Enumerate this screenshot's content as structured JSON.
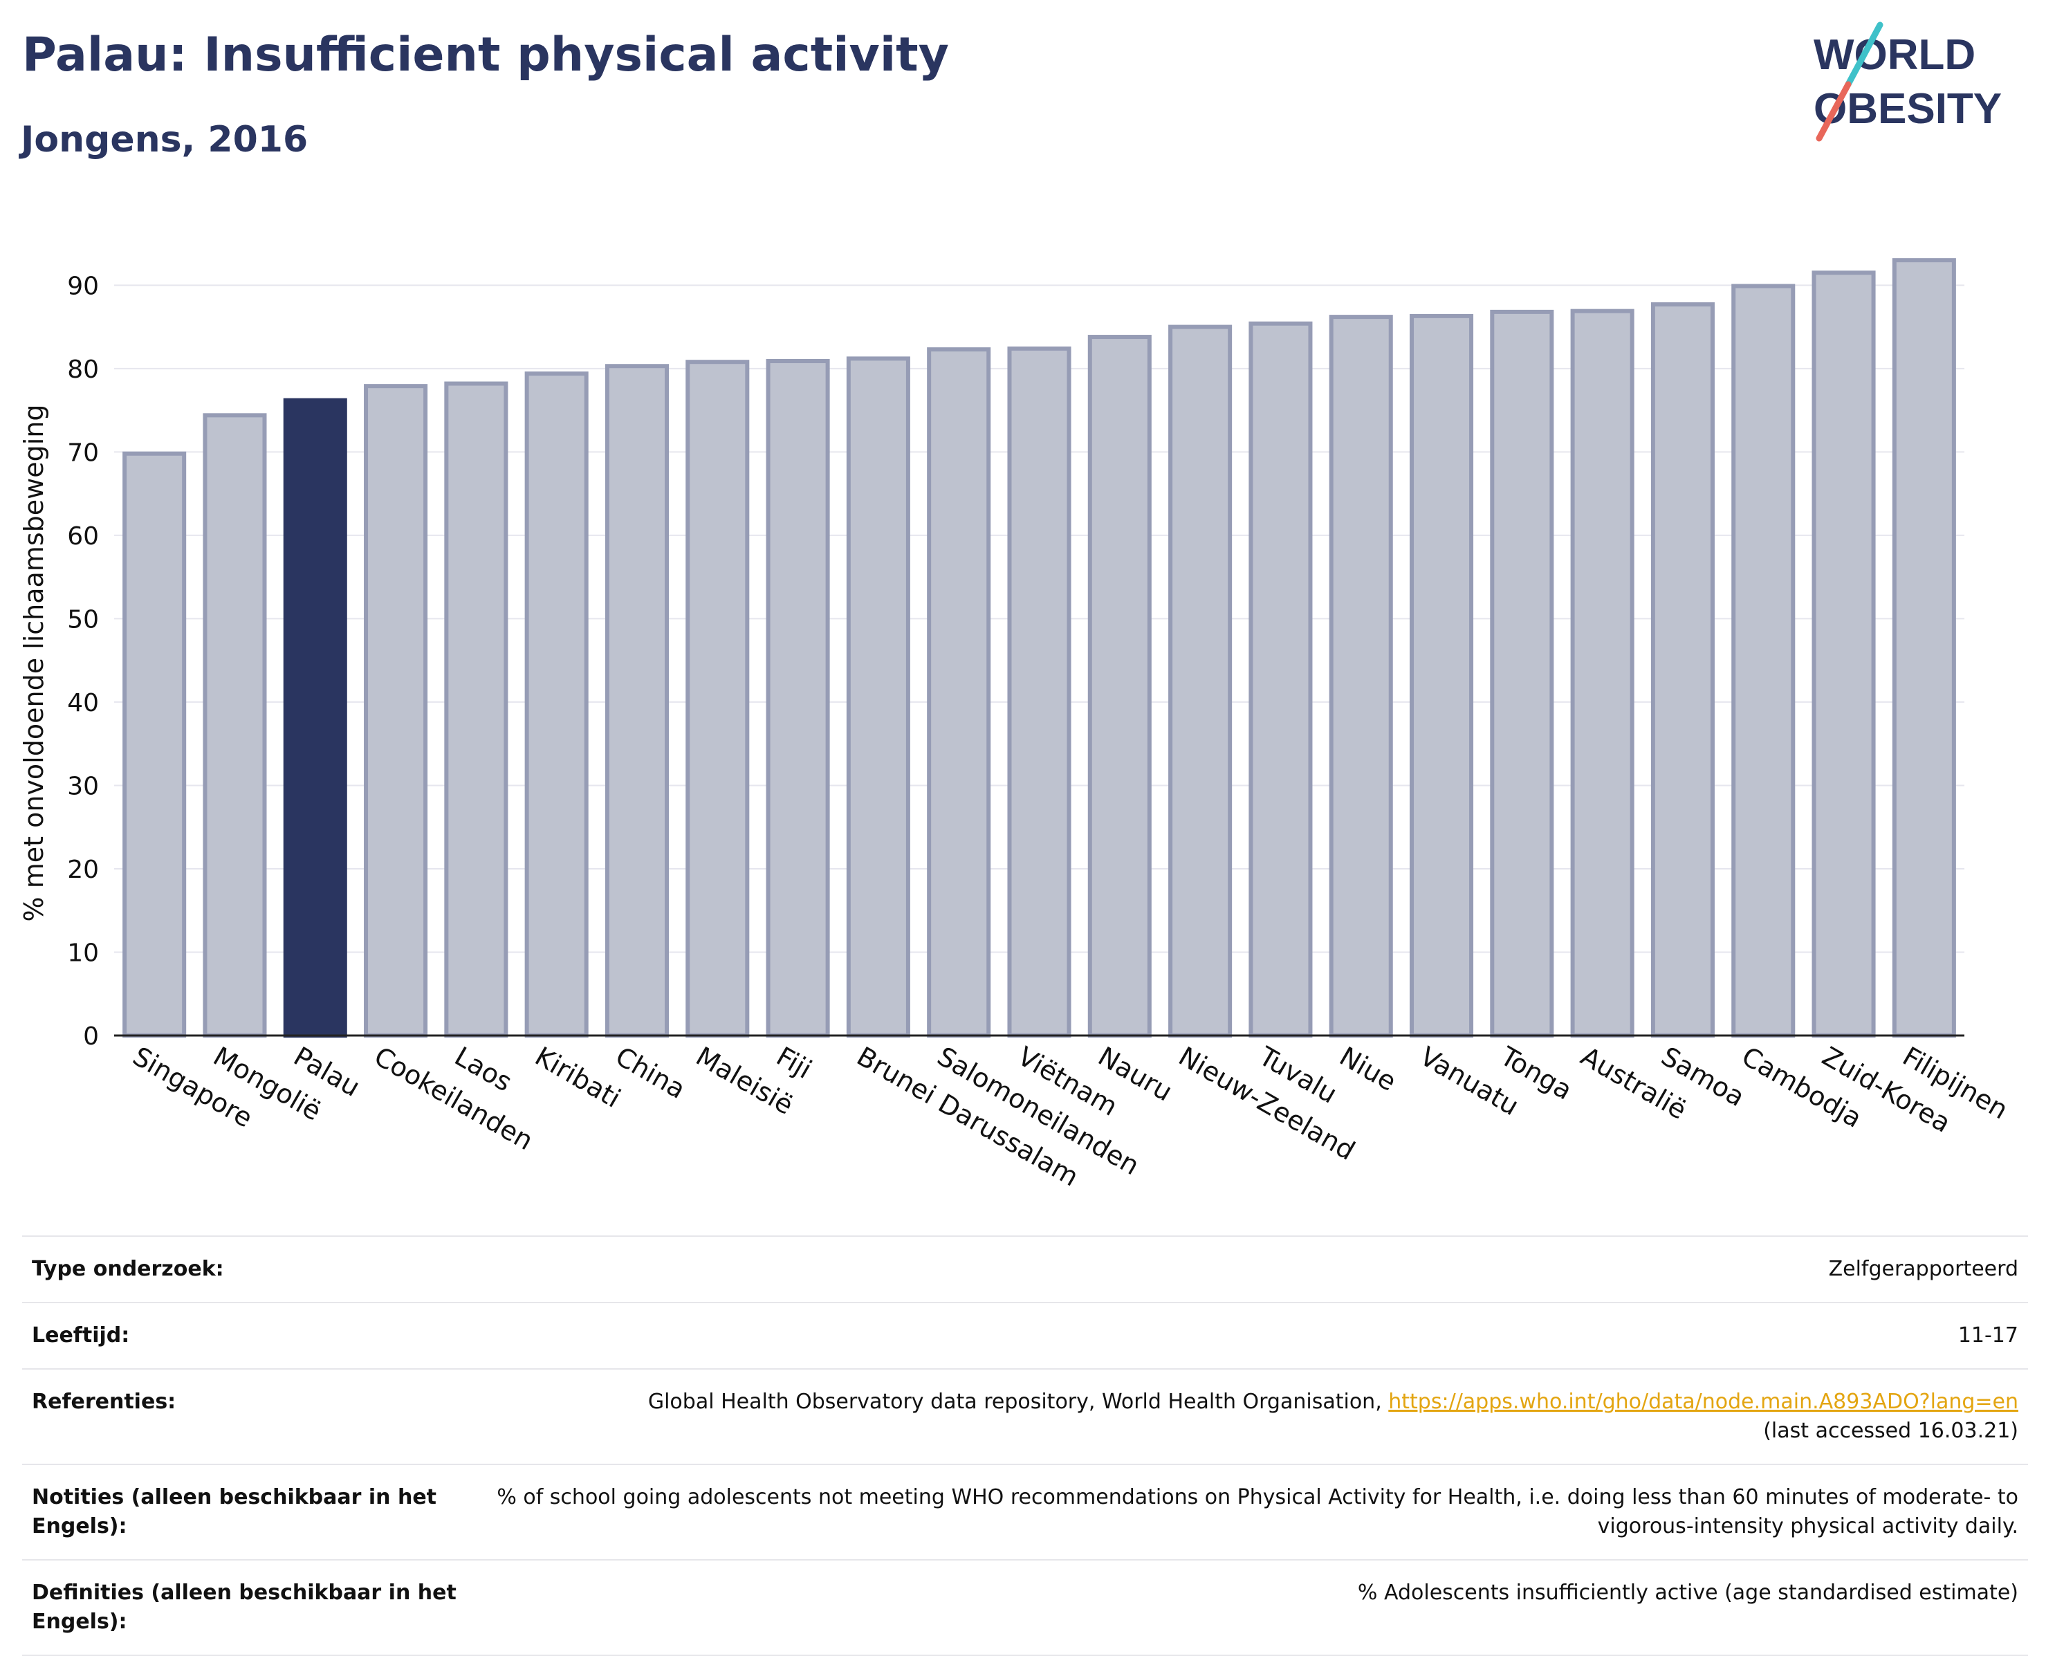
{
  "header": {
    "title": "Palau: Insufficient physical activity",
    "subtitle": "Jongens, 2016"
  },
  "logo": {
    "line1": "WORLD",
    "line2": "OBESITY",
    "text_color": "#2a3560",
    "slash_colors": [
      "#3fc1c9",
      "#e8675a"
    ]
  },
  "colors": {
    "highlight": "#2a3560",
    "bar_fill": "#bec2cf",
    "bar_stroke": "#969cb5",
    "grid": "#e6e6ee"
  },
  "chart_data": {
    "type": "bar",
    "ylabel": "% met onvoldoende lichaamsbeweging",
    "xlabel": "",
    "ylim": [
      0,
      96
    ],
    "yticks": [
      0,
      10,
      20,
      30,
      40,
      50,
      60,
      70,
      80,
      90
    ],
    "grid": true,
    "highlight": "Palau",
    "categories": [
      "Singapore",
      "Mongolië",
      "Palau",
      "Cookeilanden",
      "Laos",
      "Kiribati",
      "China",
      "Maleisië",
      "Fiji",
      "Brunei Darussalam",
      "Salomoneilanden",
      "Viëtnam",
      "Nauru",
      "Nieuw-Zeeland",
      "Tuvalu",
      "Niue",
      "Vanuatu",
      "Tonga",
      "Australië",
      "Samoa",
      "Cambodja",
      "Zuid-Korea",
      "Filipijnen"
    ],
    "values": [
      69.8,
      74.4,
      76.2,
      77.9,
      78.2,
      79.4,
      80.3,
      80.8,
      80.9,
      81.2,
      82.3,
      82.4,
      83.8,
      85.0,
      85.4,
      86.2,
      86.3,
      86.8,
      86.9,
      87.7,
      89.9,
      91.5,
      93.0
    ]
  },
  "info": {
    "rows": [
      {
        "label": "Type onderzoek:",
        "value": "Zelfgerapporteerd"
      },
      {
        "label": "Leeftijd:",
        "value": "11-17"
      },
      {
        "label": "Referenties:",
        "value": "Global Health Observatory data repository, World Health Organisation, ",
        "link": "https://apps.who.int/gho/data/node.main.A893ADO?lang=en",
        "value_after": "(last accessed 16.03.21)"
      },
      {
        "label": "Notities (alleen beschikbaar in het Engels):",
        "value": "% of school going adolescents not meeting WHO recommendations on Physical Activity for Health, i.e. doing less than 60 minutes of moderate- to vigorous-intensity physical activity daily."
      },
      {
        "label": "Definities (alleen beschikbaar in het Engels):",
        "value": "% Adolescents insufficiently active (age standardised estimate)"
      }
    ]
  }
}
